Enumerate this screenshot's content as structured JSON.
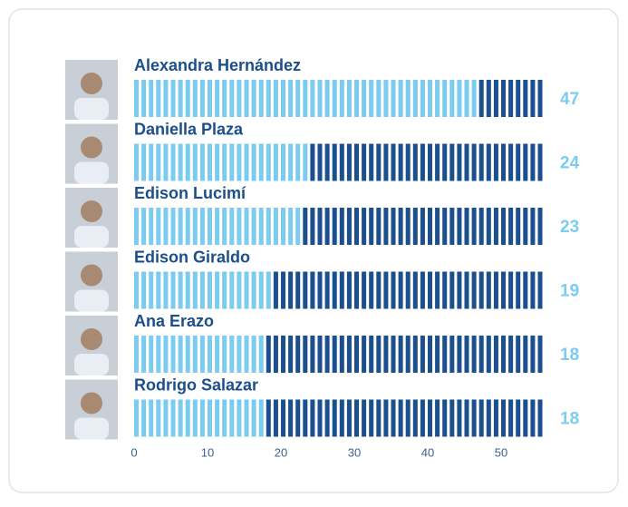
{
  "chart_data": {
    "type": "stripe-bar",
    "categories": [
      "Alexandra Hernández",
      "Daniella Plaza",
      "Edison Lucimí",
      "Edison Giraldo",
      "Ana Erazo",
      "Rodrigo Salazar"
    ],
    "values": [
      47,
      24,
      23,
      19,
      18,
      18
    ],
    "color": "#7ccbf0",
    "track_color": "#1b4f8e",
    "xlim": [
      0,
      56
    ],
    "xticks": [
      0,
      10,
      20,
      30,
      40,
      50
    ]
  }
}
